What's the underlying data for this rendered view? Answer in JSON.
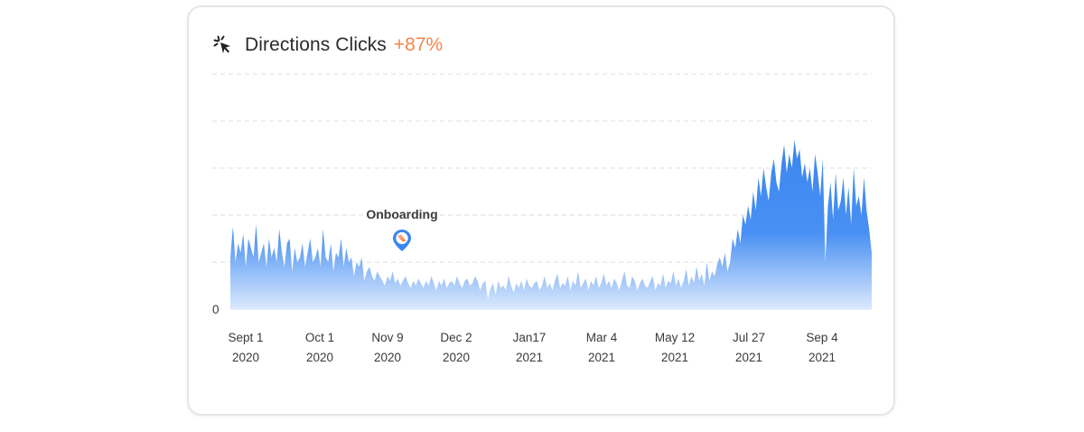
{
  "card": {
    "title": "Directions Clicks",
    "change": "+87%",
    "icon": "cursor-click-icon"
  },
  "colors": {
    "accent_orange": "#f4854e",
    "series_blue": "#3a86f0",
    "pin_blue": "#3a86f0"
  },
  "chart_data": {
    "type": "area",
    "title": "Directions Clicks",
    "xlabel": "",
    "ylabel": "",
    "y_tick_labels": [
      "0"
    ],
    "grid": "dashed horizontal",
    "x_tick_labels": [
      {
        "top": "Sept 1",
        "bottom": "2020"
      },
      {
        "top": "Oct 1",
        "bottom": "2020"
      },
      {
        "top": "Nov 9",
        "bottom": "2020"
      },
      {
        "top": "Dec 2",
        "bottom": "2020"
      },
      {
        "top": "Jan17",
        "bottom": "2021"
      },
      {
        "top": "Mar 4",
        "bottom": "2021"
      },
      {
        "top": "May 12",
        "bottom": "2021"
      },
      {
        "top": "Jul 27",
        "bottom": "2021"
      },
      {
        "top": "Sep 4",
        "bottom": "2021"
      }
    ],
    "annotations": [
      {
        "label": "Onboarding",
        "at": "Nov 9 2020",
        "icon": "map-pin-icon"
      }
    ],
    "values": [
      22,
      35,
      20,
      28,
      24,
      32,
      18,
      30,
      26,
      22,
      36,
      20,
      24,
      28,
      18,
      30,
      22,
      26,
      20,
      34,
      24,
      18,
      28,
      30,
      16,
      26,
      20,
      22,
      28,
      18,
      24,
      30,
      20,
      22,
      26,
      18,
      34,
      22,
      20,
      28,
      16,
      24,
      22,
      30,
      18,
      26,
      20,
      22,
      14,
      20,
      18,
      22,
      12,
      16,
      18,
      14,
      12,
      16,
      14,
      12,
      10,
      14,
      12,
      16,
      11,
      13,
      10,
      12,
      14,
      11,
      9,
      12,
      10,
      13,
      11,
      9,
      12,
      10,
      14,
      11,
      8,
      12,
      10,
      13,
      9,
      11,
      12,
      10,
      14,
      11,
      9,
      12,
      13,
      10,
      11,
      14,
      12,
      8,
      11,
      12,
      4,
      9,
      11,
      6,
      12,
      9,
      10,
      8,
      14,
      10,
      7,
      11,
      9,
      12,
      8,
      13,
      10,
      9,
      11,
      12,
      8,
      10,
      14,
      9,
      11,
      8,
      12,
      15,
      9,
      11,
      10,
      14,
      8,
      12,
      10,
      16,
      9,
      11,
      13,
      8,
      12,
      10,
      14,
      9,
      11,
      15,
      10,
      12,
      9,
      13,
      11,
      8,
      12,
      16,
      10,
      9,
      14,
      12,
      8,
      11,
      13,
      10,
      9,
      12,
      14,
      8,
      11,
      10,
      15,
      9,
      12,
      11,
      16,
      10,
      13,
      9,
      12,
      17,
      10,
      14,
      11,
      18,
      12,
      15,
      10,
      20,
      12,
      16,
      14,
      19,
      22,
      18,
      24,
      16,
      20,
      30,
      26,
      34,
      28,
      40,
      36,
      44,
      38,
      50,
      42,
      56,
      48,
      60,
      52,
      46,
      58,
      64,
      54,
      50,
      62,
      70,
      58,
      66,
      60,
      72,
      64,
      68,
      56,
      62,
      54,
      60,
      50,
      66,
      58,
      48,
      64,
      20,
      44,
      54,
      38,
      58,
      42,
      46,
      56,
      40,
      52,
      36,
      60,
      44,
      48,
      40,
      56,
      42,
      34,
      24
    ]
  },
  "pin_at_index": 56
}
